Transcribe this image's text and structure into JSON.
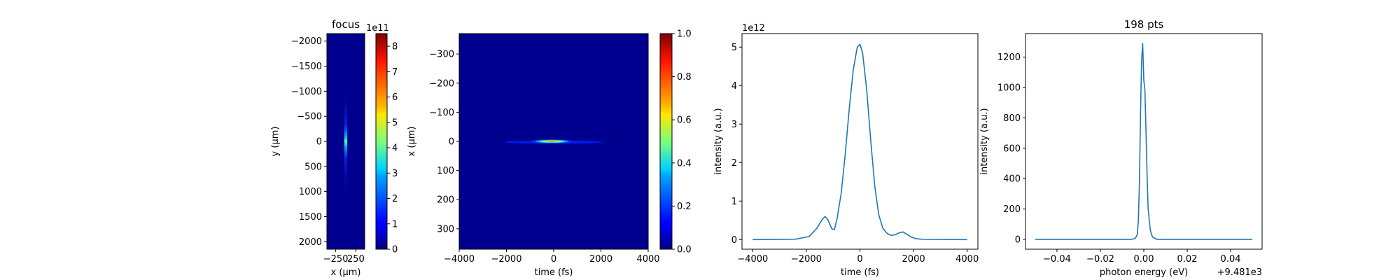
{
  "chart_data": [
    {
      "type": "heatmap",
      "title": "focus",
      "xlabel": "x (μm)",
      "ylabel": "y (μm)",
      "xticks": [
        -250,
        250
      ],
      "yticks": [
        -2000,
        -1500,
        -1000,
        -500,
        0,
        500,
        1000,
        1500,
        2000
      ],
      "xlim": [
        -470,
        470
      ],
      "ylim": [
        2150,
        -2150
      ],
      "colormap": "jet",
      "colorbar": {
        "ticks": [
          0,
          1,
          2,
          3,
          4,
          5,
          6,
          7,
          8
        ],
        "offset_text": "1e11",
        "range": [
          0,
          8.5
        ]
      }
    },
    {
      "type": "heatmap",
      "title": "",
      "xlabel": "time (fs)",
      "ylabel": "x (μm)",
      "xticks": [
        -4000,
        -2000,
        0,
        2000,
        4000
      ],
      "yticks": [
        -300,
        -200,
        -100,
        0,
        100,
        200,
        300
      ],
      "xlim": [
        -4000,
        4000
      ],
      "ylim": [
        370,
        -370
      ],
      "colormap": "jet",
      "colorbar": {
        "ticks": [
          0.0,
          0.2,
          0.4,
          0.6,
          0.8,
          1.0
        ],
        "offset_text": "",
        "range": [
          0,
          1
        ]
      }
    },
    {
      "type": "line",
      "title": "",
      "xlabel": "time (fs)",
      "ylabel": "intensity (a.u.)",
      "xticks": [
        -4000,
        -2000,
        0,
        2000,
        4000
      ],
      "yticks": [
        0,
        1,
        2,
        3,
        4,
        5
      ],
      "xlim": [
        -4400,
        4400
      ],
      "ylim": [
        -0.25,
        5.35
      ],
      "offset_text": "1e12",
      "series": [
        {
          "x": [
            -4000,
            -2400,
            -1900,
            -1600,
            -1400,
            -1300,
            -1200,
            -1050,
            -950,
            -850,
            -700,
            -550,
            -400,
            -250,
            -100,
            0,
            100,
            250,
            400,
            550,
            700,
            850,
            1000,
            1150,
            1300,
            1450,
            1600,
            1750,
            1900,
            2100,
            2400,
            4000
          ],
          "y": [
            0,
            0.01,
            0.08,
            0.3,
            0.53,
            0.6,
            0.52,
            0.28,
            0.26,
            0.55,
            1.2,
            2.2,
            3.4,
            4.4,
            5.0,
            5.07,
            4.85,
            3.9,
            2.6,
            1.4,
            0.65,
            0.3,
            0.17,
            0.11,
            0.12,
            0.17,
            0.2,
            0.14,
            0.07,
            0.02,
            0.005,
            0
          ]
        }
      ]
    },
    {
      "type": "line",
      "title": "198 pts",
      "xlabel": "photon energy (eV)",
      "ylabel": "intensity (a.u.)",
      "xticks": [
        -0.04,
        -0.02,
        0.0,
        0.02,
        0.04
      ],
      "xtick_labels": [
        "−0.04",
        "−0.02",
        "0.00",
        "0.02",
        "0.04"
      ],
      "yticks": [
        0,
        200,
        400,
        600,
        800,
        1000,
        1200
      ],
      "xlim": [
        -0.0545,
        0.0545
      ],
      "ylim": [
        -65,
        1355
      ],
      "offset_text": "+9.481e3",
      "series": [
        {
          "x": [
            -0.05,
            -0.006,
            -0.004,
            -0.003,
            -0.0025,
            -0.002,
            -0.0015,
            -0.001,
            -0.0005,
            0.0,
            0.0005,
            0.001,
            0.0015,
            0.002,
            0.003,
            0.004,
            0.006,
            0.05
          ],
          "y": [
            0,
            0,
            5,
            30,
            120,
            380,
            820,
            1180,
            1290,
            1050,
            980,
            720,
            420,
            200,
            60,
            15,
            0,
            0
          ]
        }
      ]
    }
  ]
}
